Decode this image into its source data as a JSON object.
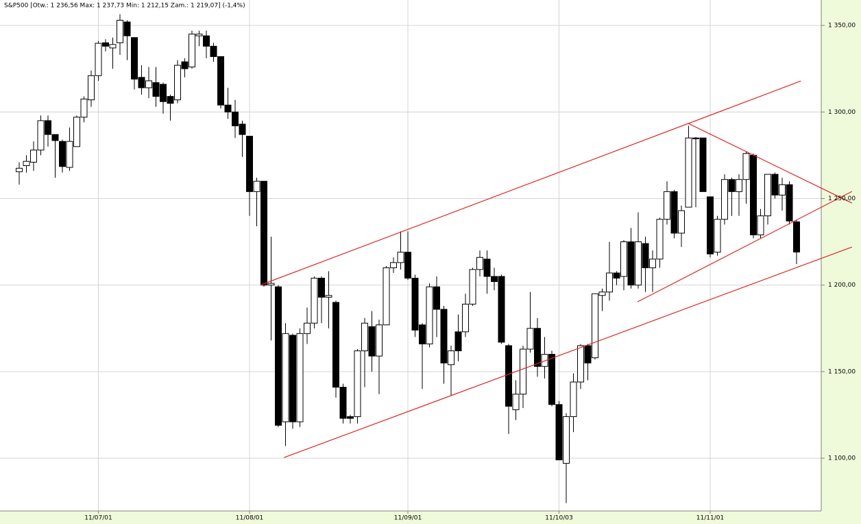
{
  "chart_data": {
    "type": "candlestick",
    "title": "S&P500 [Otw.: 1 236,56 Max: 1 237,73 Min: 1 212,15 Zam.: 1 219,07] (-1,4%)",
    "categories": [
      null,
      null,
      null,
      null,
      null,
      null,
      null,
      null,
      null,
      null,
      null,
      "11/07/01",
      null,
      null,
      null,
      null,
      null,
      null,
      null,
      null,
      null,
      null,
      null,
      null,
      null,
      null,
      null,
      null,
      null,
      null,
      null,
      null,
      "11/08/01",
      null,
      null,
      null,
      null,
      null,
      null,
      null,
      null,
      null,
      null,
      null,
      null,
      null,
      null,
      null,
      null,
      null,
      null,
      null,
      null,
      null,
      "11/09/01",
      null,
      null,
      null,
      null,
      null,
      null,
      null,
      null,
      null,
      null,
      null,
      null,
      null,
      null,
      null,
      null,
      null,
      null,
      null,
      null,
      "11/10/03",
      null,
      null,
      null,
      null,
      null,
      null,
      null,
      null,
      null,
      null,
      null,
      null,
      null,
      null,
      null,
      null,
      null,
      null,
      null,
      null,
      "11/11/01",
      null,
      null,
      null,
      null,
      null,
      null,
      null,
      null,
      null,
      null,
      null,
      null
    ],
    "open": [
      1265.5,
      1269,
      1271,
      1278,
      1295,
      1287,
      1283,
      1268,
      1280,
      1297,
      1307,
      1321,
      1340,
      1337,
      1340,
      1352,
      1343,
      1320,
      1314,
      1317,
      1316,
      1309,
      1307,
      1329,
      1326,
      1344,
      1344,
      1338,
      1332,
      1304,
      1300,
      1293,
      1286,
      1254,
      1260,
      1200,
      1199,
      1121,
      1171,
      1121,
      1172,
      1178,
      1204,
      1193,
      1190,
      1141,
      1124,
      1124,
      1162,
      1176,
      1159,
      1177,
      1210,
      1213,
      1219,
      1204,
      1177,
      1166,
      1199,
      1186,
      1154,
      1173,
      1173,
      1189,
      1209,
      1215,
      1205,
      1205,
      1165,
      1128,
      1137,
      1163,
      1175,
      1153,
      1160,
      1131,
      1097,
      1124,
      1144,
      1165,
      1158,
      1194,
      1196,
      1207,
      1205,
      1225,
      1200,
      1224,
      1210,
      1215,
      1238,
      1254,
      1230,
      1245,
      1285,
      1285,
      1251,
      1219,
      1238,
      1261,
      1254,
      1261,
      1275,
      1229,
      1240,
      1264,
      1252,
      1258,
      1236.56
    ],
    "high": [
      1271,
      1275,
      1283,
      1298,
      1298,
      1287,
      1284,
      1291,
      1298,
      1309,
      1324,
      1341,
      1342,
      1343,
      1356.5,
      1353,
      1343,
      1327,
      1326,
      1326,
      1317,
      1310,
      1330,
      1331,
      1347,
      1347,
      1347,
      1340,
      1332,
      1314,
      1307,
      1295,
      1286,
      1262,
      1260,
      1228,
      1200,
      1178,
      1172,
      1175,
      1187,
      1205,
      1205,
      1208,
      1191,
      1143,
      1125,
      1163,
      1181,
      1185,
      1180,
      1211,
      1216,
      1231,
      1231,
      1206,
      1178,
      1201,
      1205,
      1188,
      1165,
      1183,
      1195,
      1210,
      1220,
      1220,
      1210,
      1206,
      1166,
      1145,
      1165,
      1196,
      1181,
      1170,
      1162,
      1133,
      1126,
      1149,
      1166,
      1166,
      1195,
      1198,
      1225,
      1208,
      1226,
      1233,
      1242,
      1228,
      1220,
      1239,
      1260,
      1255,
      1246,
      1292,
      1285.5,
      1285,
      1251,
      1240,
      1264,
      1262,
      1264,
      1277,
      1276,
      1244,
      1264,
      1265,
      1262,
      1260,
      1237.73
    ],
    "low": [
      1258,
      1265,
      1266,
      1275,
      1280,
      1262,
      1265,
      1266,
      1280,
      1294,
      1303,
      1318,
      1335,
      1325,
      1333,
      1330,
      1313,
      1310,
      1308,
      1303,
      1299,
      1295,
      1305,
      1320,
      1325,
      1338,
      1331,
      1329,
      1302,
      1296,
      1285,
      1274,
      1240,
      1234,
      1199,
      1168,
      1118,
      1107,
      1117,
      1118,
      1166,
      1175,
      1178,
      1175,
      1135,
      1120,
      1120,
      1120,
      1141,
      1150,
      1137,
      1177,
      1207,
      1209,
      1203,
      1170,
      1140,
      1164,
      1170,
      1143,
      1136,
      1156,
      1170,
      1188,
      1205,
      1195,
      1197,
      1166,
      1114,
      1122,
      1129,
      1161,
      1147,
      1146,
      1130,
      1099,
      1074,
      1115,
      1140,
      1145,
      1157,
      1185,
      1191,
      1200,
      1197,
      1198,
      1198,
      1196,
      1196,
      1210,
      1235,
      1227,
      1222,
      1245,
      1245,
      1254,
      1216,
      1217,
      1235,
      1240,
      1240,
      1247,
      1227,
      1227,
      1235,
      1250,
      1243,
      1235,
      1212.15
    ],
    "close": [
      1267.5,
      1271.5,
      1278,
      1295,
      1287,
      1283.5,
      1268.5,
      1283,
      1297,
      1307.5,
      1321,
      1339.7,
      1338,
      1339,
      1353,
      1344,
      1319,
      1314,
      1318,
      1309,
      1306,
      1305,
      1327,
      1325,
      1345,
      1345,
      1338,
      1332,
      1304,
      1300,
      1292,
      1287,
      1254,
      1260,
      1200,
      1201,
      1119,
      1172,
      1121,
      1172,
      1178,
      1204,
      1193,
      1194,
      1141,
      1123,
      1123,
      1162,
      1178,
      1159,
      1177,
      1210,
      1213,
      1219,
      1204,
      1174,
      1166,
      1199,
      1186,
      1155,
      1162,
      1162,
      1189,
      1209,
      1216,
      1205,
      1202,
      1167,
      1130,
      1137,
      1163,
      1175,
      1153,
      1160,
      1131,
      1099,
      1124,
      1144,
      1165,
      1155,
      1195,
      1196,
      1207,
      1204,
      1225,
      1200,
      1225,
      1210,
      1215,
      1238,
      1254,
      1230,
      1243,
      1285,
      1284.5,
      1254,
      1218,
      1238,
      1261,
      1254,
      1261,
      1276,
      1229,
      1240,
      1264,
      1252,
      1258,
      1237,
      1219.07
    ],
    "up_color": "#ffffff",
    "down_color": "#000000",
    "trendline_color": "#e02424",
    "trendlines": [
      {
        "x": [
          33.5,
          108.6
        ],
        "y": [
          1200,
          1317.9
        ]
      },
      {
        "x": [
          36.8,
          115.7
        ],
        "y": [
          1100.4,
          1222.0
        ]
      },
      {
        "x": [
          93.0,
          115.7
        ],
        "y": [
          1293.3,
          1247.4
        ]
      },
      {
        "x": [
          85.9,
          115.7
        ],
        "y": [
          1190.3,
          1254.1
        ]
      }
    ],
    "ylim": [
      1069.5,
      1364.7
    ],
    "yticks": [
      {
        "value": 1100,
        "label": "1 100,00"
      },
      {
        "value": 1150,
        "label": "1 150,00"
      },
      {
        "value": 1200,
        "label": "1 200,00"
      },
      {
        "value": 1250,
        "label": "1 250,00"
      },
      {
        "value": 1300,
        "label": "1 300,00"
      },
      {
        "value": 1350,
        "label": "1 350,00"
      }
    ],
    "grid": true
  }
}
